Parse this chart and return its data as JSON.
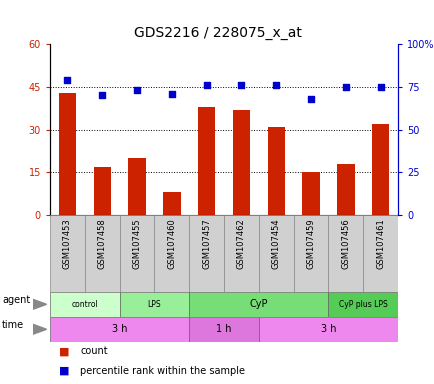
{
  "title": "GDS2216 / 228075_x_at",
  "samples": [
    "GSM107453",
    "GSM107458",
    "GSM107455",
    "GSM107460",
    "GSM107457",
    "GSM107462",
    "GSM107454",
    "GSM107459",
    "GSM107456",
    "GSM107461"
  ],
  "counts": [
    43,
    17,
    20,
    8,
    38,
    37,
    31,
    15,
    18,
    32
  ],
  "percentile_ranks": [
    79,
    70,
    73,
    71,
    76,
    76,
    76,
    68,
    75,
    75
  ],
  "left_ylim": [
    0,
    60
  ],
  "right_ylim": [
    0,
    100
  ],
  "left_yticks": [
    0,
    15,
    30,
    45,
    60
  ],
  "right_yticks": [
    0,
    25,
    50,
    75,
    100
  ],
  "right_yticklabels": [
    "0",
    "25",
    "50",
    "75",
    "100%"
  ],
  "bar_color": "#cc2200",
  "dot_color": "#0000cc",
  "agent_groups": [
    {
      "label": "control",
      "start": 0,
      "end": 2,
      "color": "#ccffcc"
    },
    {
      "label": "LPS",
      "start": 2,
      "end": 4,
      "color": "#99ee99"
    },
    {
      "label": "CyP",
      "start": 4,
      "end": 8,
      "color": "#77dd77"
    },
    {
      "label": "CyP plus LPS",
      "start": 8,
      "end": 10,
      "color": "#55cc55"
    }
  ],
  "time_groups": [
    {
      "label": "3 h",
      "start": 0,
      "end": 4,
      "color": "#ee88ee"
    },
    {
      "label": "1 h",
      "start": 4,
      "end": 6,
      "color": "#dd77dd"
    },
    {
      "label": "3 h",
      "start": 6,
      "end": 10,
      "color": "#ee88ee"
    }
  ],
  "agent_label": "agent",
  "time_label": "time",
  "legend_count_label": "count",
  "legend_pct_label": "percentile rank within the sample",
  "plot_bg": "#ffffff",
  "bar_width": 0.5,
  "sample_bg": "#d0d0d0",
  "title_fontsize": 10,
  "tick_fontsize": 7,
  "label_fontsize": 7,
  "annot_fontsize": 7
}
